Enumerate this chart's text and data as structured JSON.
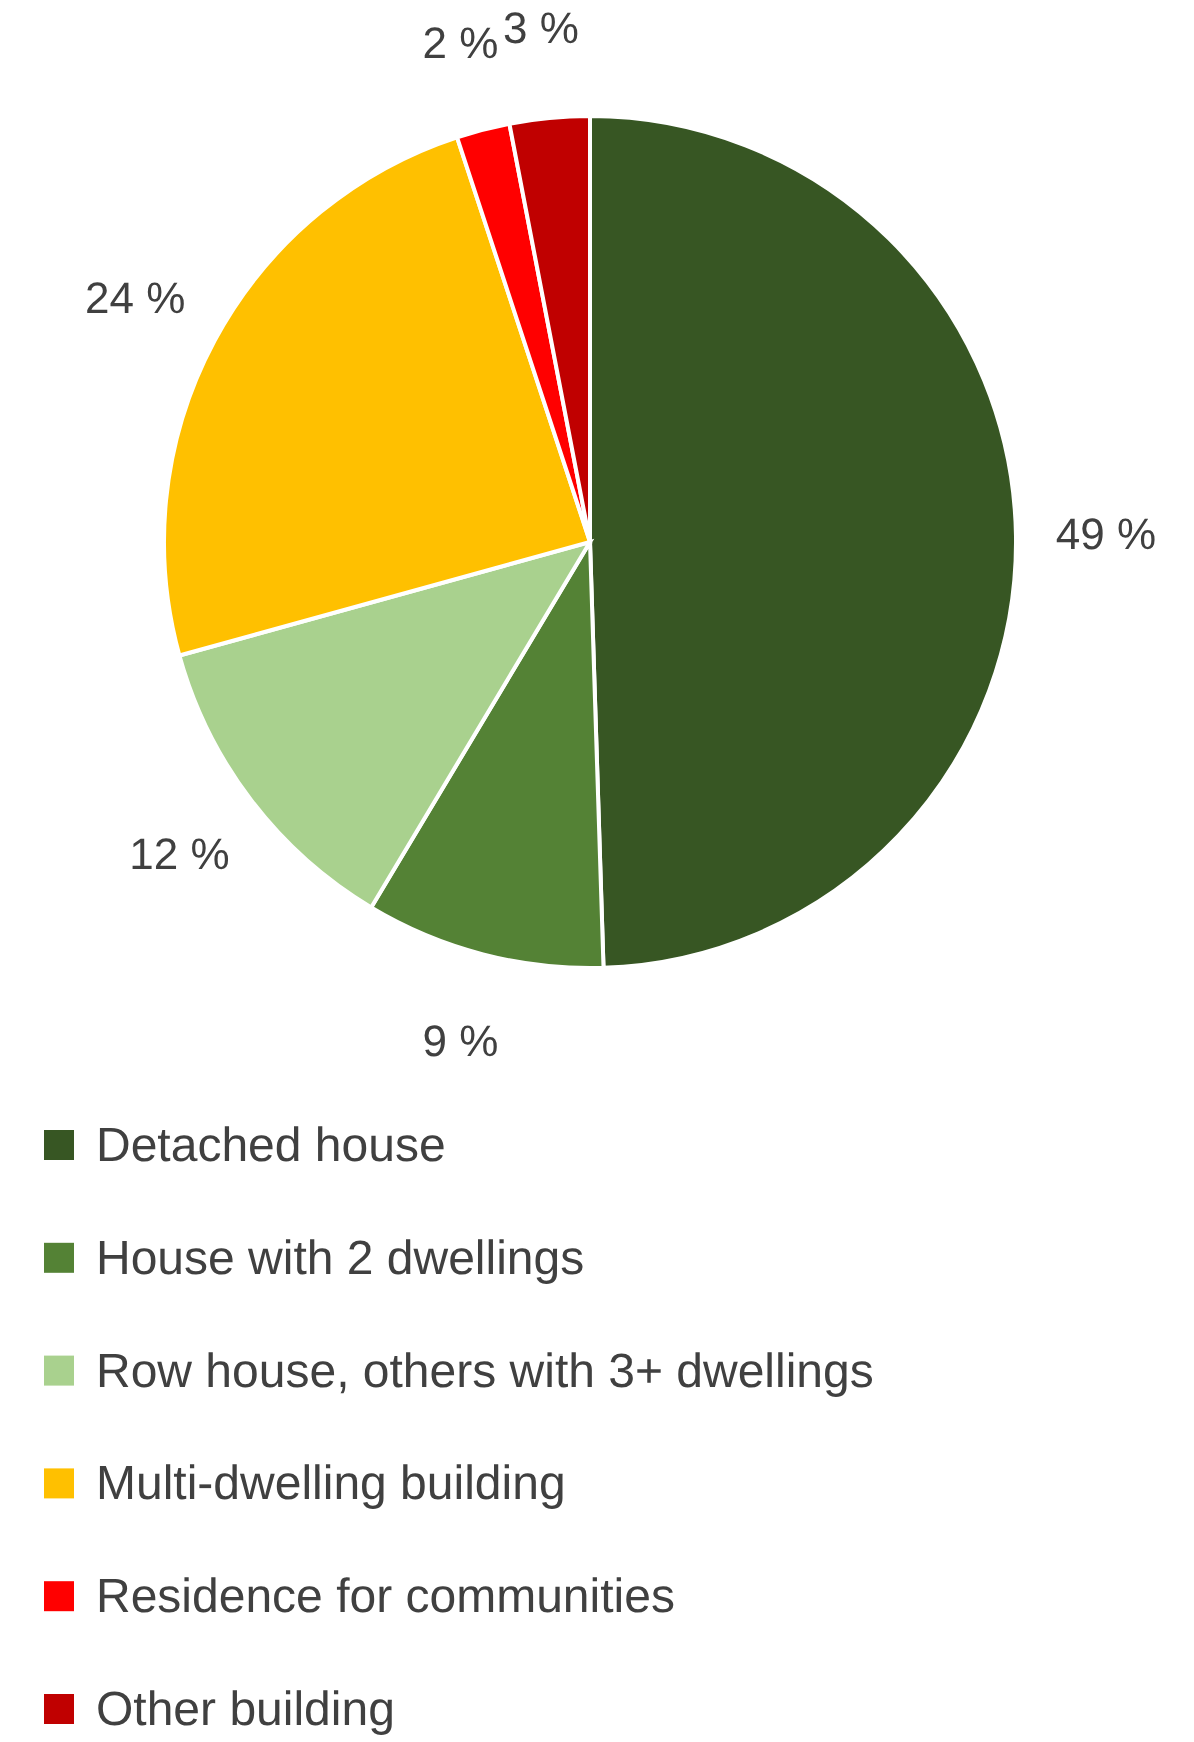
{
  "chart_data": {
    "type": "pie",
    "categories": [
      "Detached house",
      "House with 2 dwellings",
      "Row house, others with 3+ dwellings",
      "Multi-dwelling building",
      "Residence for communities",
      "Other building"
    ],
    "values": [
      49,
      9,
      12,
      24,
      2,
      3
    ],
    "value_labels": [
      "49 %",
      "9 %",
      "12 %",
      "24 %",
      "2 %",
      "3 %"
    ],
    "colors": [
      "#375623",
      "#548235",
      "#a9d18e",
      "#ffc000",
      "#ff0000",
      "#c00000"
    ],
    "legend": "bottom"
  }
}
